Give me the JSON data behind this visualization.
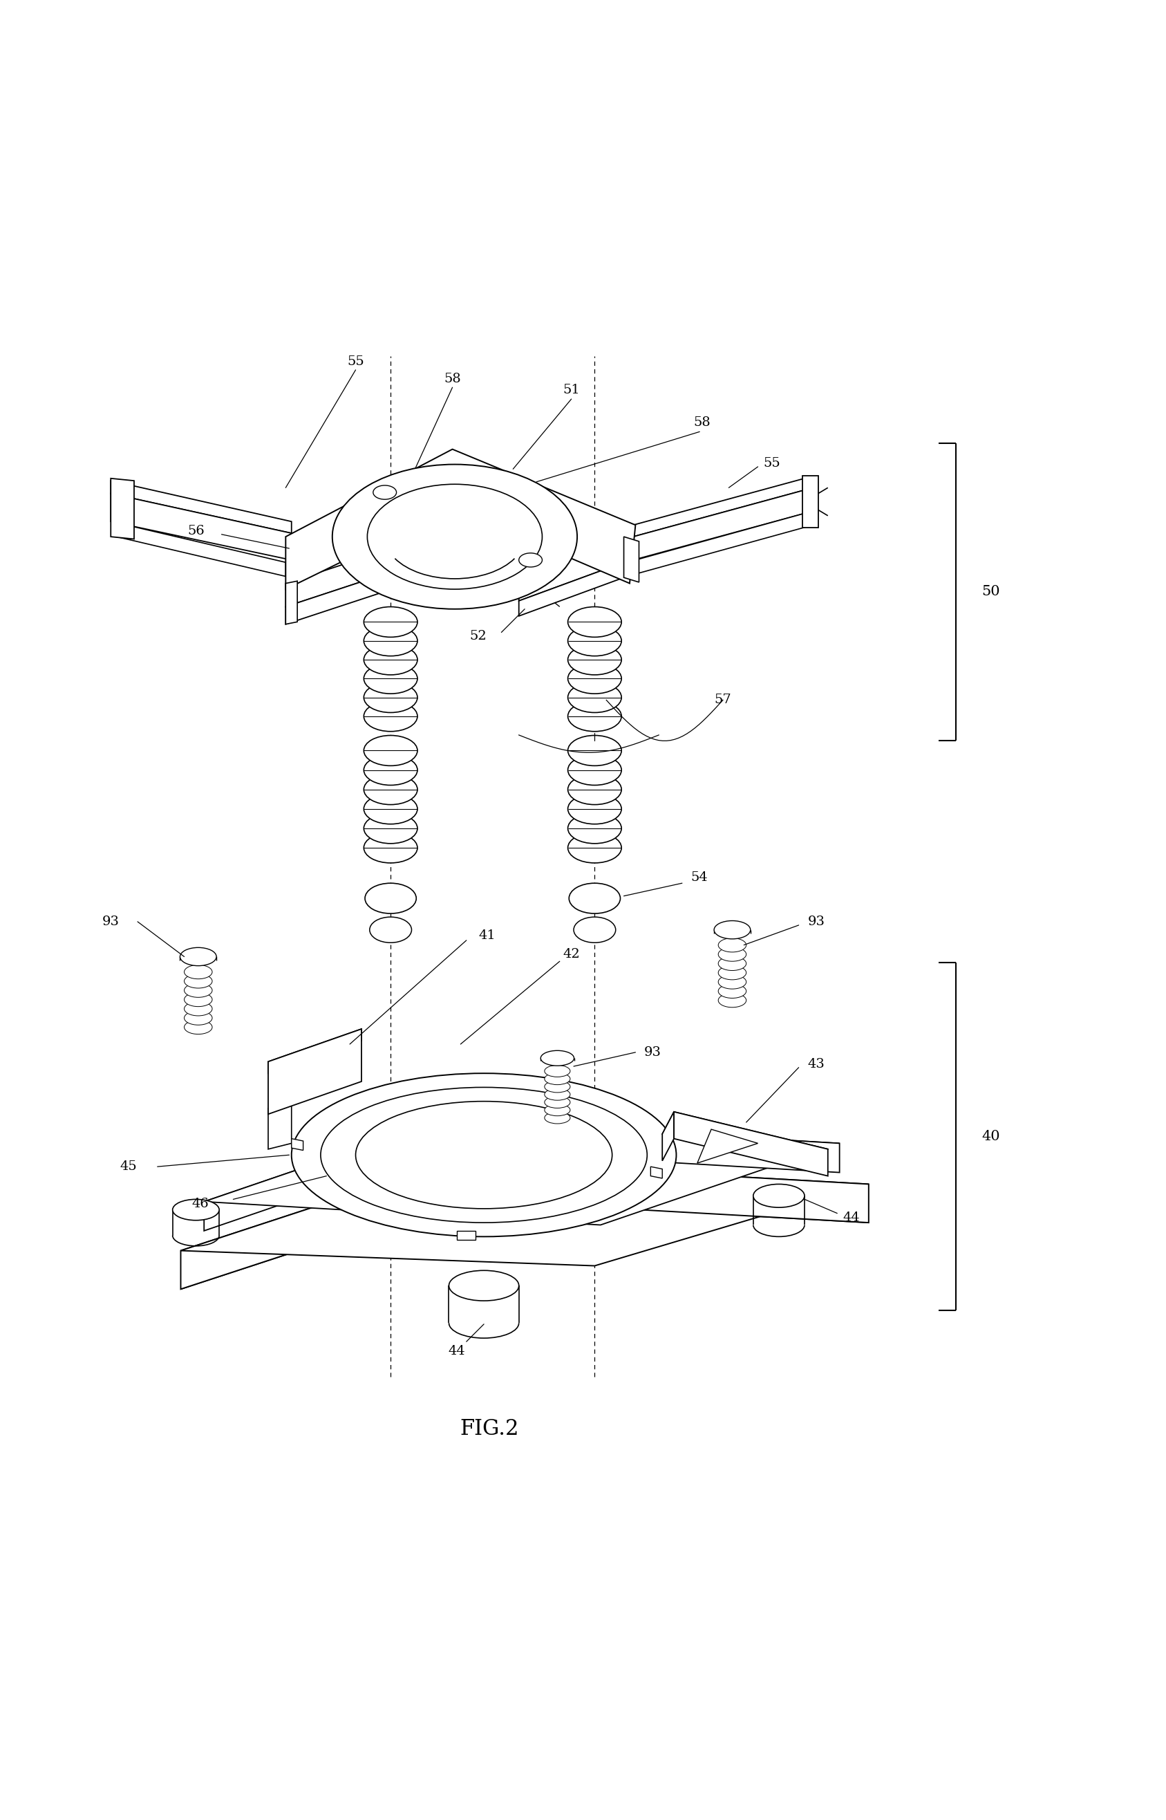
{
  "title": "FIG.2",
  "bg": "#ffffff",
  "lc": "#000000",
  "fig_w": 16.87,
  "fig_h": 26.32,
  "components": {
    "top_assembly_label": "50",
    "bottom_assembly_label": "40",
    "fig_label": "FIG.2"
  }
}
